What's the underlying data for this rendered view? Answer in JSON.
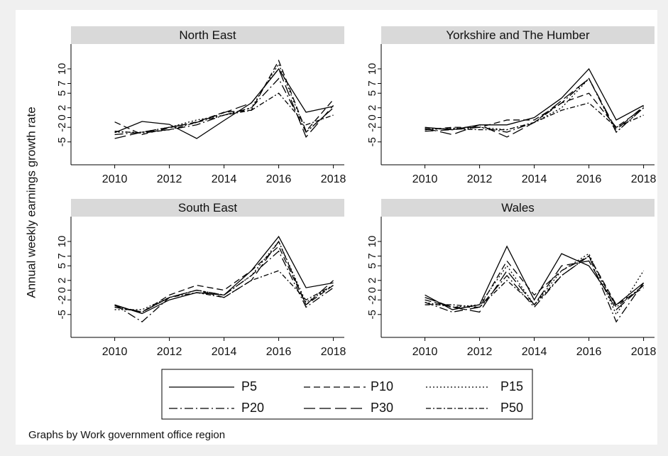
{
  "chart_data": [
    {
      "type": "line",
      "title": "North East",
      "x": [
        2010,
        2011,
        2012,
        2013,
        2014,
        2015,
        2016,
        2017,
        2018
      ],
      "xlim": [
        2008.4,
        2018.4
      ],
      "xticks": [
        2010,
        2012,
        2014,
        2016,
        2018
      ],
      "ylim": [
        -9.7,
        15.1
      ],
      "yticks": [
        -5,
        -2,
        0,
        2,
        5,
        7,
        10
      ],
      "series": [
        {
          "name": "P5",
          "color": "#000000",
          "dash": "none",
          "values": [
            -3.1,
            -0.8,
            -1.4,
            -4.3,
            -0.6,
            3,
            10,
            1.1,
            2.3
          ]
        },
        {
          "name": "P10",
          "color": "#000000",
          "dash": "9,5",
          "values": [
            -0.9,
            -3.5,
            -2.1,
            -0.9,
            1.1,
            1.5,
            11.7,
            -2.8,
            3.7
          ]
        },
        {
          "name": "P15",
          "color": "#000000",
          "dash": "2,3",
          "values": [
            -3,
            -3,
            -2,
            -0.5,
            0.5,
            2,
            11,
            -3,
            2
          ]
        },
        {
          "name": "P20",
          "color": "#000000",
          "dash": "12,4,2,4",
          "values": [
            -3.5,
            -3,
            -2.5,
            -1.5,
            0.5,
            2,
            8,
            -3,
            2
          ]
        },
        {
          "name": "P30",
          "color": "#000000",
          "dash": "16,6",
          "values": [
            -4.3,
            -3,
            -2,
            -1,
            1,
            3,
            10,
            -4,
            2.5
          ]
        },
        {
          "name": "P50",
          "color": "#000000",
          "dash": "7,3,2,3",
          "values": [
            -2.8,
            -3.2,
            -2.5,
            -1,
            0.5,
            1.5,
            5,
            -1.5,
            0.5
          ]
        }
      ]
    },
    {
      "type": "line",
      "title": "Yorkshire and The Humber",
      "x": [
        2010,
        2011,
        2012,
        2013,
        2014,
        2015,
        2016,
        2017,
        2018
      ],
      "xlim": [
        2008.4,
        2018.4
      ],
      "xticks": [
        2010,
        2012,
        2014,
        2016,
        2018
      ],
      "ylim": [
        -9.7,
        15.1
      ],
      "yticks": [
        -5,
        -2,
        0,
        2,
        5,
        7,
        10
      ],
      "series": [
        {
          "name": "P5",
          "color": "#000000",
          "dash": "none",
          "values": [
            -2,
            -2.5,
            -1.5,
            -1.5,
            0,
            4,
            10,
            -0.5,
            2.5
          ]
        },
        {
          "name": "P10",
          "color": "#000000",
          "dash": "9,5",
          "values": [
            -2.5,
            -2,
            -2,
            -0.5,
            -0.5,
            3,
            5,
            -2,
            2
          ]
        },
        {
          "name": "P15",
          "color": "#000000",
          "dash": "2,3",
          "values": [
            -2.5,
            -2.2,
            -2,
            -2.5,
            -1,
            2,
            8,
            -3,
            2
          ]
        },
        {
          "name": "P20",
          "color": "#000000",
          "dash": "12,4,2,4",
          "values": [
            -2.8,
            -2.5,
            -2,
            -3,
            -1,
            3,
            8,
            -3,
            2
          ]
        },
        {
          "name": "P30",
          "color": "#000000",
          "dash": "16,6",
          "values": [
            -2.2,
            -3.5,
            -1.5,
            -4,
            -1,
            3.5,
            8,
            -2.5,
            2.3
          ]
        },
        {
          "name": "P50",
          "color": "#000000",
          "dash": "7,3,2,3",
          "values": [
            -2.3,
            -2.3,
            -2.5,
            -2.5,
            -1,
            1.5,
            3,
            -2,
            0.5
          ]
        }
      ]
    },
    {
      "type": "line",
      "title": "South East",
      "x": [
        2010,
        2011,
        2012,
        2013,
        2014,
        2015,
        2016,
        2017,
        2018
      ],
      "xlim": [
        2008.4,
        2018.4
      ],
      "xticks": [
        2010,
        2012,
        2014,
        2016,
        2018
      ],
      "ylim": [
        -9.7,
        15.1
      ],
      "yticks": [
        -5,
        -2,
        0,
        2,
        5,
        7,
        10
      ],
      "series": [
        {
          "name": "P5",
          "color": "#000000",
          "dash": "none",
          "values": [
            -3,
            -4.8,
            -2,
            -0.5,
            -1,
            4,
            11,
            0.5,
            1.5
          ]
        },
        {
          "name": "P10",
          "color": "#000000",
          "dash": "9,5",
          "values": [
            -3.5,
            -4.5,
            -1,
            1,
            0,
            4,
            9,
            -3,
            1
          ]
        },
        {
          "name": "P15",
          "color": "#000000",
          "dash": "2,3",
          "values": [
            -4,
            -4,
            -1.5,
            0,
            -1,
            3,
            10,
            -2.5,
            1
          ]
        },
        {
          "name": "P20",
          "color": "#000000",
          "dash": "12,4,2,4",
          "values": [
            -3,
            -6.5,
            -1.5,
            0,
            -1,
            3,
            8,
            -3.5,
            0.5
          ]
        },
        {
          "name": "P30",
          "color": "#000000",
          "dash": "16,6",
          "values": [
            -3.2,
            -4.5,
            -1.5,
            0,
            -1.5,
            2,
            10,
            -3,
            2
          ]
        },
        {
          "name": "P50",
          "color": "#000000",
          "dash": "7,3,2,3",
          "values": [
            -3.5,
            -4.5,
            -1.5,
            -0.5,
            -1.5,
            2,
            4,
            -2,
            1
          ]
        }
      ]
    },
    {
      "type": "line",
      "title": "Wales",
      "x": [
        2010,
        2011,
        2012,
        2013,
        2014,
        2015,
        2016,
        2017,
        2018
      ],
      "xlim": [
        2008.4,
        2018.4
      ],
      "xticks": [
        2010,
        2012,
        2014,
        2016,
        2018
      ],
      "ylim": [
        -9.7,
        15.1
      ],
      "yticks": [
        -5,
        -2,
        0,
        2,
        5,
        7,
        10
      ],
      "series": [
        {
          "name": "P5",
          "color": "#000000",
          "dash": "none",
          "values": [
            -1,
            -4,
            -3,
            9,
            -2,
            7.5,
            5,
            -3,
            1.5
          ]
        },
        {
          "name": "P10",
          "color": "#000000",
          "dash": "9,5",
          "values": [
            -2,
            -3.5,
            -3.5,
            6,
            -1,
            4,
            7,
            -3,
            0.5
          ]
        },
        {
          "name": "P15",
          "color": "#000000",
          "dash": "2,3",
          "values": [
            -2.5,
            -3.5,
            -3,
            5,
            -3,
            4,
            7.5,
            -5,
            4
          ]
        },
        {
          "name": "P20",
          "color": "#000000",
          "dash": "12,4,2,4",
          "values": [
            -2.5,
            -4.5,
            -3.5,
            3,
            -3.5,
            3,
            7,
            -6.5,
            1.5
          ]
        },
        {
          "name": "P30",
          "color": "#000000",
          "dash": "16,6",
          "values": [
            -1.5,
            -3.5,
            -4.5,
            4,
            -3,
            5,
            6,
            -4,
            1
          ]
        },
        {
          "name": "P50",
          "color": "#000000",
          "dash": "7,3,2,3",
          "values": [
            -3,
            -3,
            -3.5,
            2,
            -3,
            3,
            7,
            -3.5,
            1
          ]
        }
      ]
    }
  ],
  "ylabel": "Annual weekly earnings growth rate",
  "note": "Graphs by Work government office region"
}
